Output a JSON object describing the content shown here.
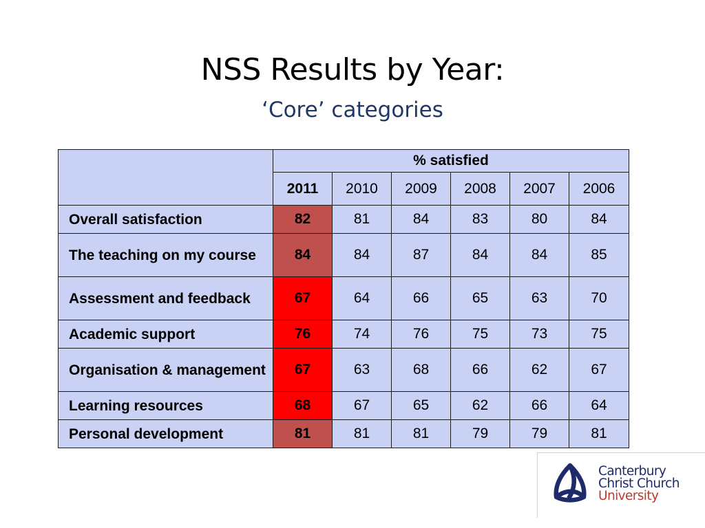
{
  "slide": {
    "title": "NSS Results by Year:",
    "subtitle": "‘Core’ categories"
  },
  "table": {
    "group_header": "% satisfied",
    "years": [
      "2011",
      "2010",
      "2009",
      "2008",
      "2007",
      "2006"
    ],
    "rows": [
      {
        "category": "Overall satisfaction",
        "values": [
          "82",
          "81",
          "84",
          "83",
          "80",
          "84"
        ],
        "highlight": "dark"
      },
      {
        "category": "The teaching on my course",
        "values": [
          "84",
          "84",
          "87",
          "84",
          "84",
          "85"
        ],
        "highlight": "dark"
      },
      {
        "category": "Assessment and feedback",
        "values": [
          "67",
          "64",
          "66",
          "65",
          "63",
          "70"
        ],
        "highlight": "bright"
      },
      {
        "category": "Academic support",
        "values": [
          "76",
          "74",
          "76",
          "75",
          "73",
          "75"
        ],
        "highlight": "bright"
      },
      {
        "category": "Organisation & management",
        "values": [
          "67",
          "63",
          "68",
          "66",
          "62",
          "67"
        ],
        "highlight": "bright"
      },
      {
        "category": "Learning resources",
        "values": [
          "68",
          "67",
          "65",
          "62",
          "66",
          "64"
        ],
        "highlight": "bright"
      },
      {
        "category": "Personal development",
        "values": [
          "81",
          "81",
          "81",
          "79",
          "79",
          "81"
        ],
        "highlight": "dark"
      }
    ]
  },
  "logo": {
    "line1": "Canterbury",
    "line2": "Christ Church",
    "line3": "University"
  },
  "colors": {
    "table_bg": "#C9D1F4",
    "highlight_dark": "#C0504D",
    "highlight_bright": "#FF0000",
    "subtitle": "#1F3864",
    "logo_navy": "#1F2A6B",
    "logo_red": "#C0392B"
  }
}
